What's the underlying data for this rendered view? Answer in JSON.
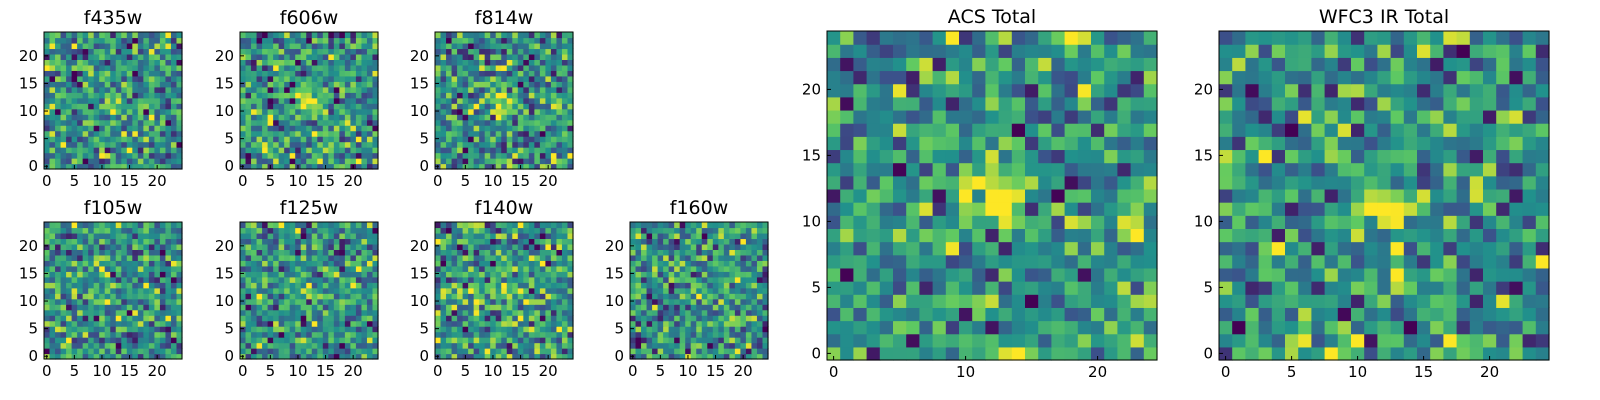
{
  "figure": {
    "panels": [
      {
        "title": "f435w",
        "xticks": [
          "0",
          "5",
          "10",
          "15",
          "20"
        ],
        "yticks": [
          "0",
          "5",
          "10",
          "15",
          "20"
        ],
        "seed": 11,
        "peak": 1.6
      },
      {
        "title": "f606w",
        "xticks": [
          "0",
          "5",
          "10",
          "15",
          "20"
        ],
        "yticks": [
          "0",
          "5",
          "10",
          "15",
          "20"
        ],
        "seed": 23,
        "peak": 2.2
      },
      {
        "title": "f814w",
        "xticks": [
          "0",
          "5",
          "10",
          "15",
          "20"
        ],
        "yticks": [
          "0",
          "5",
          "10",
          "15",
          "20"
        ],
        "seed": 37,
        "peak": 1.4
      },
      {
        "title": "f105w",
        "xticks": [
          "0",
          "5",
          "10",
          "15",
          "20"
        ],
        "yticks": [
          "0",
          "5",
          "10",
          "15",
          "20"
        ],
        "seed": 41,
        "peak": 1.0
      },
      {
        "title": "f125w",
        "xticks": [
          "0",
          "5",
          "10",
          "15",
          "20"
        ],
        "yticks": [
          "0",
          "5",
          "10",
          "15",
          "20"
        ],
        "seed": 53,
        "peak": 1.0
      },
      {
        "title": "f140w",
        "xticks": [
          "0",
          "5",
          "10",
          "15",
          "20"
        ],
        "yticks": [
          "0",
          "5",
          "10",
          "15",
          "20"
        ],
        "seed": 67,
        "peak": 1.0
      },
      {
        "title": "f160w",
        "xticks": [
          "0",
          "5",
          "10",
          "15",
          "20"
        ],
        "yticks": [
          "0",
          "5",
          "10",
          "15",
          "20"
        ],
        "seed": 79,
        "peak": 1.2
      },
      {
        "title": "ACS Total",
        "xticks": [
          "0",
          "10",
          "20"
        ],
        "yticks": [
          "0",
          "5",
          "10",
          "15",
          "20"
        ],
        "seed": 97,
        "peak": 2.6
      },
      {
        "title": "WFC3 IR Total",
        "xticks": [
          "0",
          "5",
          "10",
          "15",
          "20"
        ],
        "yticks": [
          "0",
          "5",
          "10",
          "15",
          "20"
        ],
        "seed": 113,
        "peak": 2.4
      }
    ]
  },
  "chart_data": {
    "type": "heatmap",
    "colormap": "viridis",
    "colormap_stops": [
      "#440154",
      "#3b528b",
      "#21918c",
      "#5ec962",
      "#fde725"
    ],
    "image_size": [
      25,
      25
    ],
    "xlim": [
      0,
      24
    ],
    "ylim": [
      0,
      24
    ],
    "source_center": [
      12,
      12
    ],
    "panels": [
      "f435w",
      "f606w",
      "f814w",
      "f105w",
      "f125w",
      "f140w",
      "f160w",
      "ACS Total",
      "WFC3 IR Total"
    ]
  }
}
